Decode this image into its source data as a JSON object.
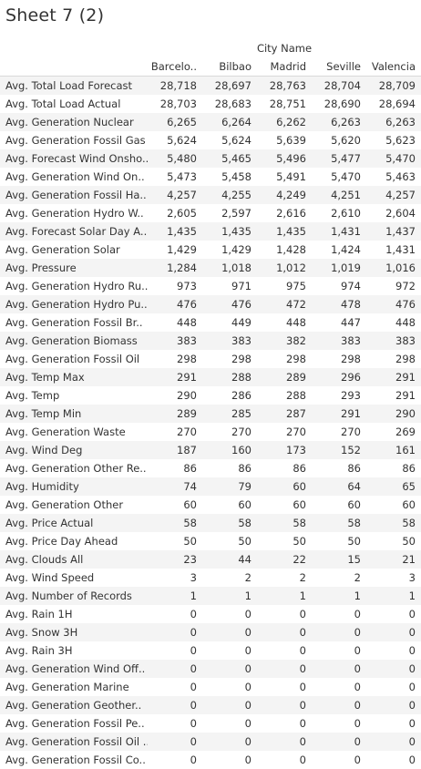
{
  "sheet": {
    "title": "Sheet 7 (2)"
  },
  "chart_data": {
    "type": "table",
    "column_group_label": "City Name",
    "columns": [
      "Barcelo..",
      "Bilbao",
      "Madrid",
      "Seville",
      "Valencia"
    ],
    "rows": [
      {
        "label": "Avg. Total Load Forecast",
        "values": [
          "28,718",
          "28,697",
          "28,763",
          "28,704",
          "28,709"
        ]
      },
      {
        "label": "Avg. Total Load Actual",
        "values": [
          "28,703",
          "28,683",
          "28,751",
          "28,690",
          "28,694"
        ]
      },
      {
        "label": "Avg. Generation Nuclear",
        "values": [
          "6,265",
          "6,264",
          "6,262",
          "6,263",
          "6,263"
        ]
      },
      {
        "label": "Avg. Generation Fossil Gas",
        "values": [
          "5,624",
          "5,624",
          "5,639",
          "5,620",
          "5,623"
        ]
      },
      {
        "label": "Avg. Forecast Wind Onsho..",
        "values": [
          "5,480",
          "5,465",
          "5,496",
          "5,477",
          "5,470"
        ]
      },
      {
        "label": "Avg. Generation Wind On..",
        "values": [
          "5,473",
          "5,458",
          "5,491",
          "5,470",
          "5,463"
        ]
      },
      {
        "label": "Avg. Generation Fossil Ha..",
        "values": [
          "4,257",
          "4,255",
          "4,249",
          "4,251",
          "4,257"
        ]
      },
      {
        "label": "Avg. Generation Hydro W..",
        "values": [
          "2,605",
          "2,597",
          "2,616",
          "2,610",
          "2,604"
        ]
      },
      {
        "label": "Avg. Forecast Solar Day A..",
        "values": [
          "1,435",
          "1,435",
          "1,435",
          "1,431",
          "1,437"
        ]
      },
      {
        "label": "Avg. Generation Solar",
        "values": [
          "1,429",
          "1,429",
          "1,428",
          "1,424",
          "1,431"
        ]
      },
      {
        "label": "Avg. Pressure",
        "values": [
          "1,284",
          "1,018",
          "1,012",
          "1,019",
          "1,016"
        ]
      },
      {
        "label": "Avg. Generation Hydro Ru..",
        "values": [
          "973",
          "971",
          "975",
          "974",
          "972"
        ]
      },
      {
        "label": "Avg. Generation Hydro Pu..",
        "values": [
          "476",
          "476",
          "472",
          "478",
          "476"
        ]
      },
      {
        "label": "Avg. Generation Fossil Br..",
        "values": [
          "448",
          "449",
          "448",
          "447",
          "448"
        ]
      },
      {
        "label": "Avg. Generation Biomass",
        "values": [
          "383",
          "383",
          "382",
          "383",
          "383"
        ]
      },
      {
        "label": "Avg. Generation Fossil Oil",
        "values": [
          "298",
          "298",
          "298",
          "298",
          "298"
        ]
      },
      {
        "label": "Avg. Temp Max",
        "values": [
          "291",
          "288",
          "289",
          "296",
          "291"
        ]
      },
      {
        "label": "Avg. Temp",
        "values": [
          "290",
          "286",
          "288",
          "293",
          "291"
        ]
      },
      {
        "label": "Avg. Temp Min",
        "values": [
          "289",
          "285",
          "287",
          "291",
          "290"
        ]
      },
      {
        "label": "Avg. Generation Waste",
        "values": [
          "270",
          "270",
          "270",
          "270",
          "269"
        ]
      },
      {
        "label": "Avg. Wind Deg",
        "values": [
          "187",
          "160",
          "173",
          "152",
          "161"
        ]
      },
      {
        "label": "Avg. Generation Other Re..",
        "values": [
          "86",
          "86",
          "86",
          "86",
          "86"
        ]
      },
      {
        "label": "Avg. Humidity",
        "values": [
          "74",
          "79",
          "60",
          "64",
          "65"
        ]
      },
      {
        "label": "Avg. Generation Other",
        "values": [
          "60",
          "60",
          "60",
          "60",
          "60"
        ]
      },
      {
        "label": "Avg. Price Actual",
        "values": [
          "58",
          "58",
          "58",
          "58",
          "58"
        ]
      },
      {
        "label": "Avg. Price Day Ahead",
        "values": [
          "50",
          "50",
          "50",
          "50",
          "50"
        ]
      },
      {
        "label": "Avg. Clouds All",
        "values": [
          "23",
          "44",
          "22",
          "15",
          "21"
        ]
      },
      {
        "label": "Avg. Wind Speed",
        "values": [
          "3",
          "2",
          "2",
          "2",
          "3"
        ]
      },
      {
        "label": "Avg. Number of Records",
        "values": [
          "1",
          "1",
          "1",
          "1",
          "1"
        ]
      },
      {
        "label": "Avg. Rain 1H",
        "values": [
          "0",
          "0",
          "0",
          "0",
          "0"
        ]
      },
      {
        "label": "Avg. Snow 3H",
        "values": [
          "0",
          "0",
          "0",
          "0",
          "0"
        ]
      },
      {
        "label": "Avg. Rain 3H",
        "values": [
          "0",
          "0",
          "0",
          "0",
          "0"
        ]
      },
      {
        "label": "Avg. Generation Wind Off..",
        "values": [
          "0",
          "0",
          "0",
          "0",
          "0"
        ]
      },
      {
        "label": "Avg. Generation Marine",
        "values": [
          "0",
          "0",
          "0",
          "0",
          "0"
        ]
      },
      {
        "label": "Avg. Generation Geother..",
        "values": [
          "0",
          "0",
          "0",
          "0",
          "0"
        ]
      },
      {
        "label": "Avg. Generation Fossil Pe..",
        "values": [
          "0",
          "0",
          "0",
          "0",
          "0"
        ]
      },
      {
        "label": "Avg. Generation Fossil Oil ..",
        "values": [
          "0",
          "0",
          "0",
          "0",
          "0"
        ]
      },
      {
        "label": "Avg. Generation Fossil Co..",
        "values": [
          "0",
          "0",
          "0",
          "0",
          "0"
        ]
      }
    ]
  }
}
